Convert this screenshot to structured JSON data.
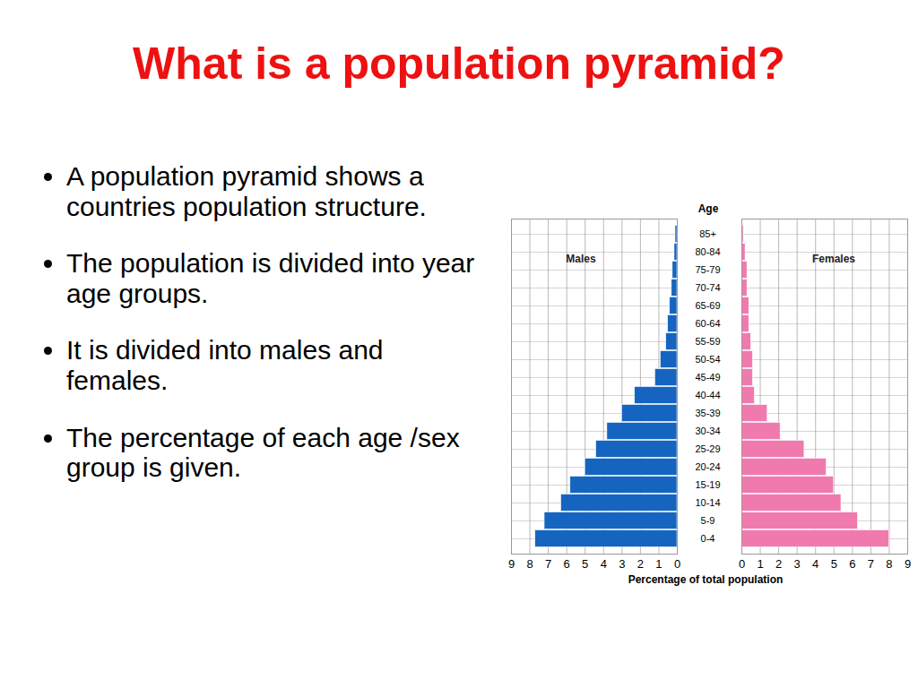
{
  "title": "What is a population pyramid?",
  "bullets": [
    "A population pyramid shows a countries population structure.",
    "The population is divided into year age groups.",
    "It is divided into males and females.",
    "The percentage of each age /sex group is given."
  ],
  "chart_data": {
    "type": "bar",
    "orientation": "horizontal",
    "grid": true,
    "ylabel": "Age",
    "xlabel": "Percentage of total population",
    "categories": [
      "85+",
      "80-84",
      "75-79",
      "70-74",
      "65-69",
      "60-64",
      "55-59",
      "50-54",
      "45-49",
      "40-44",
      "35-39",
      "30-34",
      "25-29",
      "20-24",
      "15-19",
      "10-14",
      "5-9",
      "0-4"
    ],
    "series": [
      {
        "name": "Males",
        "color": "#1565c0",
        "values": [
          0.1,
          0.15,
          0.25,
          0.3,
          0.4,
          0.5,
          0.6,
          0.9,
          1.2,
          2.3,
          3.0,
          3.8,
          4.4,
          5.0,
          5.8,
          6.3,
          7.2,
          7.7
        ]
      },
      {
        "name": "Females",
        "color": "#f07aae",
        "values": [
          0.1,
          0.2,
          0.3,
          0.3,
          0.4,
          0.4,
          0.5,
          0.6,
          0.6,
          0.7,
          1.4,
          2.1,
          3.4,
          4.6,
          5.0,
          5.4,
          6.3,
          8.0
        ]
      }
    ],
    "xlim": [
      0,
      9
    ],
    "xticks": [
      0,
      1,
      2,
      3,
      4,
      5,
      6,
      7,
      8,
      9
    ]
  }
}
